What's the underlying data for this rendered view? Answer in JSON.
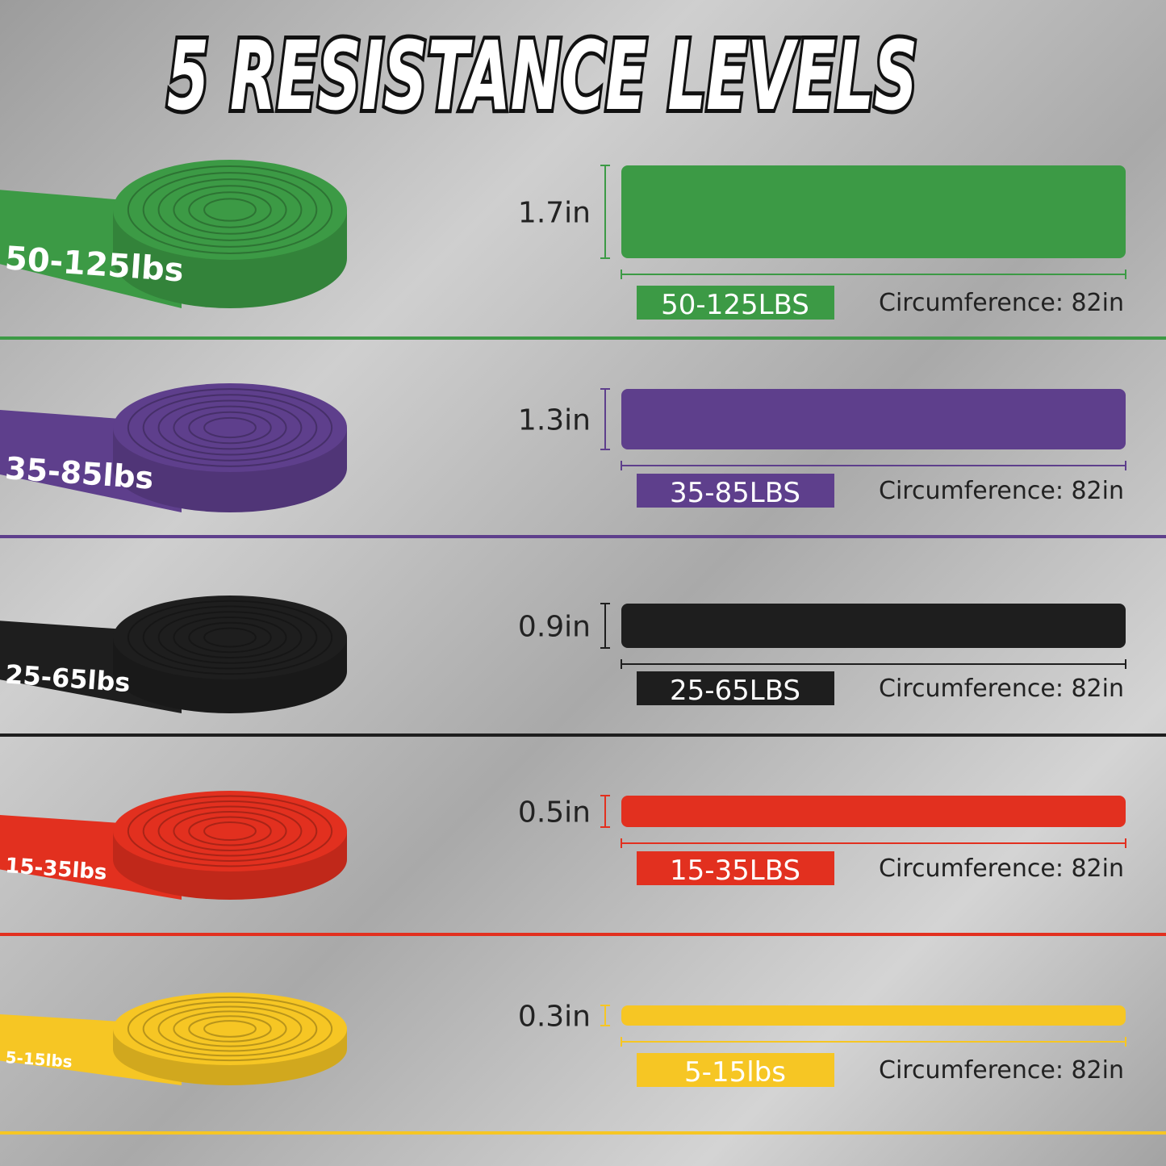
{
  "title": "5 RESISTANCE LEVELS",
  "bands": [
    {
      "coil_label": "50-125lbs",
      "width": "1.7in",
      "badge": "50-125LBS",
      "circumference": "Circumference: 82in",
      "color": "#3c9a45"
    },
    {
      "coil_label": "35-85lbs",
      "width": "1.3in",
      "badge": "35-85LBS",
      "circumference": "Circumference: 82in",
      "color": "#5e3f8c"
    },
    {
      "coil_label": "25-65lbs",
      "width": "0.9in",
      "badge": "25-65LBS",
      "circumference": "Circumference: 82in",
      "color": "#1e1e1e"
    },
    {
      "coil_label": "15-35lbs",
      "width": "0.5in",
      "badge": "15-35LBS",
      "circumference": "Circumference: 82in",
      "color": "#e2301f"
    },
    {
      "coil_label": "5-15lbs",
      "width": "0.3in",
      "badge": "5-15lbs",
      "circumference": "Circumference: 82in",
      "color": "#f6c624"
    }
  ]
}
